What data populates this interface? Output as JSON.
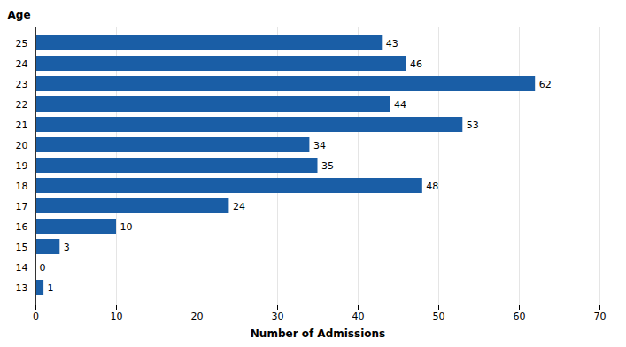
{
  "chart_data": {
    "type": "bar",
    "orientation": "horizontal",
    "categories": [
      "13",
      "14",
      "15",
      "16",
      "17",
      "18",
      "19",
      "20",
      "21",
      "22",
      "23",
      "24",
      "25"
    ],
    "values": [
      1,
      0,
      3,
      10,
      24,
      48,
      35,
      34,
      53,
      44,
      62,
      46,
      43
    ],
    "color": "#1A5EA6",
    "xlabel": "Number of Admissions",
    "ylabel": "Age",
    "xlim": [
      0,
      70
    ],
    "xticks": [
      0,
      10,
      20,
      30,
      40,
      50,
      60,
      70
    ],
    "grid": true,
    "data_labels": true
  }
}
